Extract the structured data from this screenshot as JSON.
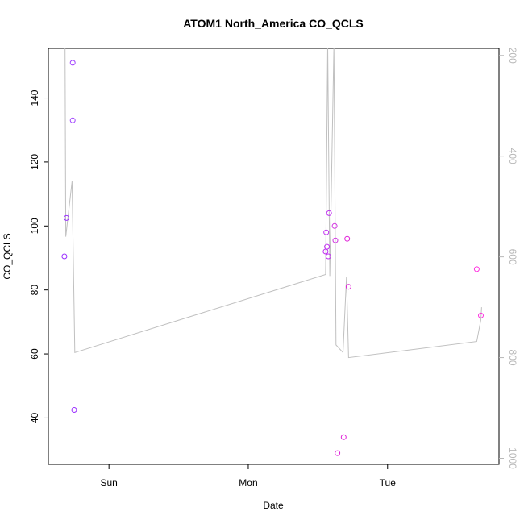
{
  "chart_data": {
    "type": "scatter",
    "title": "ATOM1 North_America CO_QCLS",
    "xlabel": "Date",
    "ylabel": "CO_QCLS",
    "x_ticks": [
      {
        "label": "Sun",
        "value": 1.0
      },
      {
        "label": "Mon",
        "value": 2.0
      },
      {
        "label": "Tue",
        "value": 3.0
      }
    ],
    "xlim": [
      0.565,
      3.8
    ],
    "ylim": [
      25.5,
      155.5
    ],
    "y_ticks": [
      40,
      60,
      80,
      100,
      120,
      140
    ],
    "y2_ticks": [
      200,
      400,
      600,
      800,
      1000
    ],
    "y2lim": [
      1012,
      186
    ],
    "y2_reversed": true,
    "points": [
      {
        "x": 0.68,
        "y": 90.5
      },
      {
        "x": 0.695,
        "y": 102.5
      },
      {
        "x": 0.74,
        "y": 151.0
      },
      {
        "x": 0.74,
        "y": 133.0
      },
      {
        "x": 0.75,
        "y": 42.5
      },
      {
        "x": 2.555,
        "y": 92.0
      },
      {
        "x": 2.56,
        "y": 98.0
      },
      {
        "x": 2.565,
        "y": 93.5
      },
      {
        "x": 2.575,
        "y": 90.5
      },
      {
        "x": 2.58,
        "y": 104.0
      },
      {
        "x": 2.62,
        "y": 100.0
      },
      {
        "x": 2.625,
        "y": 95.5
      },
      {
        "x": 2.64,
        "y": 29.0
      },
      {
        "x": 2.685,
        "y": 34.0
      },
      {
        "x": 2.71,
        "y": 96.0
      },
      {
        "x": 2.72,
        "y": 81.0
      },
      {
        "x": 3.64,
        "y": 86.5
      },
      {
        "x": 3.67,
        "y": 72.0
      }
    ],
    "altitude_series": [
      {
        "x": 0.685,
        "y2": 180
      },
      {
        "x": 0.69,
        "y2": 560
      },
      {
        "x": 0.735,
        "y2": 450
      },
      {
        "x": 0.755,
        "y2": 790
      },
      {
        "x": 2.555,
        "y2": 635
      },
      {
        "x": 2.57,
        "y2": 180
      },
      {
        "x": 2.585,
        "y2": 638
      },
      {
        "x": 2.615,
        "y2": 180
      },
      {
        "x": 2.63,
        "y2": 775
      },
      {
        "x": 2.68,
        "y2": 790
      },
      {
        "x": 2.705,
        "y2": 640
      },
      {
        "x": 2.72,
        "y2": 800
      },
      {
        "x": 3.64,
        "y2": 768
      },
      {
        "x": 3.67,
        "y2": 725
      },
      {
        "x": 3.675,
        "y2": 700
      }
    ],
    "colors": {
      "points": [
        "#9b30ff",
        "#9b30ff",
        "#a040ff",
        "#a040ff",
        "#9b30ff",
        "#c030f0",
        "#c030f0",
        "#c030f0",
        "#c030f0",
        "#c030f0",
        "#d030e0",
        "#d030e0",
        "#e020d8",
        "#e020d8",
        "#e020d8",
        "#e020d8",
        "#ff30e0",
        "#ff30e0"
      ],
      "line": "#c0c0c0",
      "right_axis": "#b8b8b8"
    },
    "grid": false
  }
}
